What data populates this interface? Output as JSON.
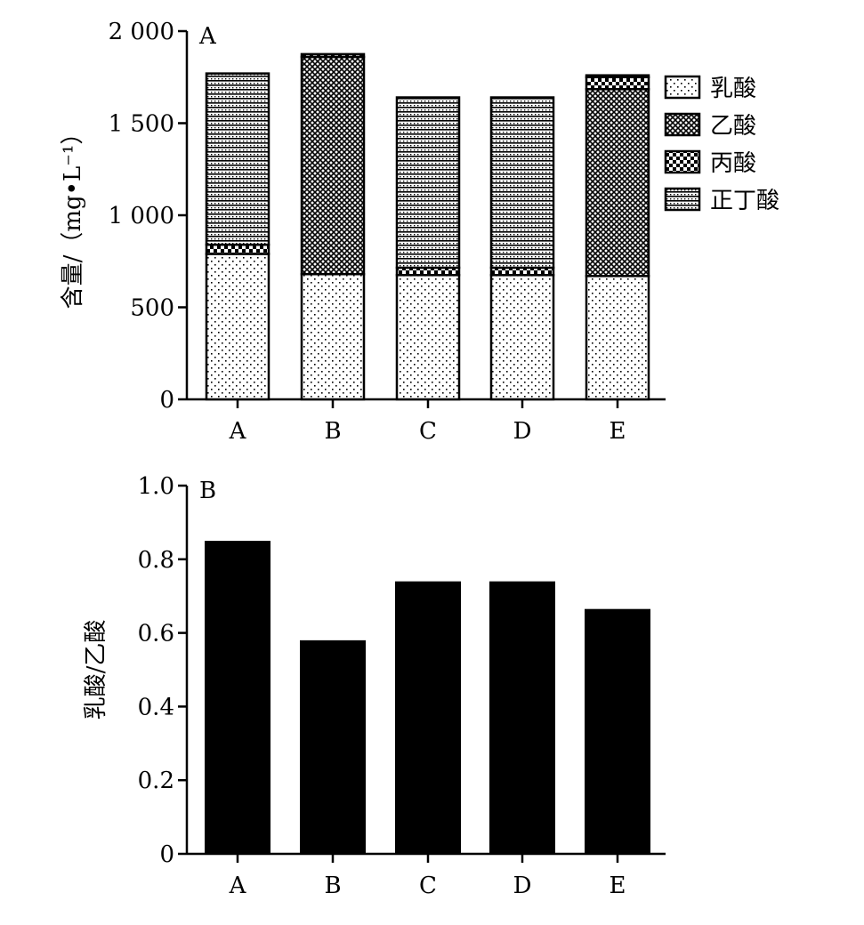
{
  "chart_data": [
    {
      "type": "bar",
      "stacked": true,
      "panel_label": "A",
      "ylabel": "含量/（mg•L⁻¹）",
      "categories": [
        "A",
        "B",
        "C",
        "D",
        "E"
      ],
      "ylim": [
        0,
        2000
      ],
      "yticks": [
        0,
        500,
        1000,
        1500,
        2000
      ],
      "ytick_labels": [
        "0",
        "500",
        "1 000",
        "1 500",
        "2 000"
      ],
      "legend_position": "right",
      "series": [
        {
          "name": "乳酸",
          "pattern": "dots",
          "values": [
            790,
            680,
            675,
            675,
            670
          ]
        },
        {
          "name": "乙酸",
          "pattern": "crosshatch",
          "values": [
            0,
            1180,
            0,
            0,
            1015
          ]
        },
        {
          "name": "丙酸",
          "pattern": "checker",
          "values": [
            50,
            15,
            40,
            40,
            65
          ]
        },
        {
          "name": "正丁酸",
          "pattern": "horizontal",
          "values": [
            930,
            0,
            925,
            925,
            10
          ]
        }
      ]
    },
    {
      "type": "bar",
      "panel_label": "B",
      "ylabel": "乳酸/乙酸",
      "categories": [
        "A",
        "B",
        "C",
        "D",
        "E"
      ],
      "ylim": [
        0,
        1.0
      ],
      "yticks": [
        0,
        0.2,
        0.4,
        0.6,
        0.8,
        1.0
      ],
      "ytick_labels": [
        "0",
        "0.2",
        "0.4",
        "0.6",
        "0.8",
        "1.0"
      ],
      "values": [
        0.85,
        0.58,
        0.74,
        0.74,
        0.665
      ],
      "bar_color": "#000000"
    }
  ]
}
